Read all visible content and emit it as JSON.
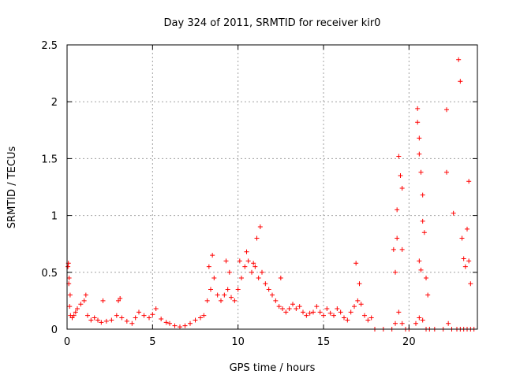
{
  "chart_data": {
    "type": "scatter",
    "title": "Day 324 of 2011, SRMTID for receiver kir0",
    "xlabel": "GPS time / hours",
    "ylabel": "SRMTID / TECUs",
    "xlim": [
      0,
      24
    ],
    "ylim": [
      0,
      2.5
    ],
    "x_ticks": [
      0,
      5,
      10,
      15,
      20
    ],
    "x_tick_labels": [
      "0",
      "5",
      "10",
      "15",
      "20"
    ],
    "y_ticks": [
      0,
      0.5,
      1,
      1.5,
      2,
      2.5
    ],
    "y_tick_labels": [
      "0",
      "0.5",
      "1",
      "1.5",
      "2",
      "2.5"
    ],
    "grid": true,
    "marker": "plus",
    "series": [
      {
        "name": "SRMTID",
        "color": "#ff0000",
        "x": [
          0.05,
          0.1,
          0.15,
          0.2,
          0.3,
          0.4,
          0.5,
          0.6,
          0.8,
          1.0,
          1.2,
          1.4,
          1.6,
          1.8,
          2.0,
          2.3,
          2.6,
          2.9,
          3.0,
          3.2,
          3.5,
          3.8,
          4.0,
          4.2,
          4.5,
          4.8,
          5.0,
          5.2,
          5.5,
          5.8,
          6.0,
          6.3,
          6.6,
          6.9,
          7.2,
          7.5,
          7.8,
          8.0,
          8.2,
          8.4,
          8.6,
          8.8,
          9.0,
          9.2,
          9.4,
          9.6,
          9.8,
          10.0,
          10.2,
          10.4,
          10.6,
          10.8,
          11.0,
          11.2,
          11.4,
          11.6,
          11.8,
          12.0,
          12.2,
          12.4,
          12.6,
          12.8,
          13.0,
          13.2,
          13.4,
          13.6,
          13.8,
          14.0,
          14.2,
          14.4,
          14.6,
          14.8,
          15.0,
          15.2,
          15.4,
          15.6,
          15.8,
          16.0,
          16.2,
          16.4,
          16.6,
          16.8,
          17.0,
          17.2,
          17.4,
          17.6,
          17.8,
          18.0,
          18.5,
          19.0,
          19.2,
          19.4,
          19.6,
          19.8,
          20.0,
          20.4,
          20.6,
          20.8,
          21.0,
          21.2,
          21.5,
          22.0,
          22.3,
          22.5,
          22.8,
          23.0,
          23.2,
          23.4,
          23.6,
          23.8,
          0.08,
          0.12,
          0.18,
          1.1,
          2.1,
          3.1,
          8.3,
          8.5,
          9.3,
          9.5,
          10.1,
          10.5,
          10.9,
          11.3,
          11.1,
          12.5,
          16.9,
          17.1,
          19.1,
          19.2,
          19.3,
          19.3,
          19.4,
          19.5,
          19.6,
          19.6,
          20.5,
          20.5,
          20.6,
          20.6,
          20.6,
          20.7,
          20.7,
          20.8,
          20.8,
          20.9,
          21.0,
          21.1,
          22.2,
          22.2,
          22.6,
          22.9,
          23.0,
          23.1,
          23.2,
          23.3,
          23.4,
          23.5,
          23.5,
          23.6
        ],
        "y": [
          0.55,
          0.4,
          0.2,
          0.12,
          0.1,
          0.12,
          0.15,
          0.18,
          0.22,
          0.25,
          0.12,
          0.08,
          0.1,
          0.08,
          0.06,
          0.07,
          0.08,
          0.12,
          0.25,
          0.1,
          0.07,
          0.05,
          0.1,
          0.15,
          0.12,
          0.1,
          0.13,
          0.18,
          0.09,
          0.06,
          0.05,
          0.03,
          0.02,
          0.03,
          0.05,
          0.08,
          0.1,
          0.12,
          0.25,
          0.35,
          0.45,
          0.3,
          0.25,
          0.3,
          0.35,
          0.28,
          0.25,
          0.35,
          0.45,
          0.55,
          0.6,
          0.5,
          0.55,
          0.45,
          0.5,
          0.4,
          0.35,
          0.3,
          0.25,
          0.2,
          0.18,
          0.15,
          0.18,
          0.22,
          0.18,
          0.2,
          0.15,
          0.12,
          0.14,
          0.15,
          0.2,
          0.15,
          0.12,
          0.18,
          0.14,
          0.12,
          0.18,
          0.15,
          0.1,
          0.08,
          0.15,
          0.2,
          0.25,
          0.22,
          0.12,
          0.08,
          0.1,
          0.0,
          0.0,
          0.0,
          0.05,
          0.15,
          0.05,
          0.0,
          0.0,
          0.05,
          0.1,
          0.08,
          0.0,
          0.0,
          0.0,
          0.0,
          0.05,
          0.0,
          0.0,
          0.0,
          0.0,
          0.0,
          0.0,
          0.0,
          0.58,
          0.45,
          0.3,
          0.3,
          0.25,
          0.27,
          0.55,
          0.65,
          0.6,
          0.5,
          0.6,
          0.68,
          0.58,
          0.9,
          0.8,
          0.45,
          0.58,
          0.4,
          0.7,
          0.5,
          1.05,
          0.8,
          1.52,
          1.35,
          1.24,
          0.7,
          1.94,
          1.82,
          1.68,
          1.54,
          0.6,
          0.52,
          1.38,
          1.18,
          0.95,
          0.85,
          0.45,
          0.3,
          1.93,
          1.38,
          1.02,
          2.37,
          2.18,
          0.8,
          0.62,
          0.55,
          0.88,
          1.3,
          0.6,
          0.4
        ]
      }
    ]
  }
}
